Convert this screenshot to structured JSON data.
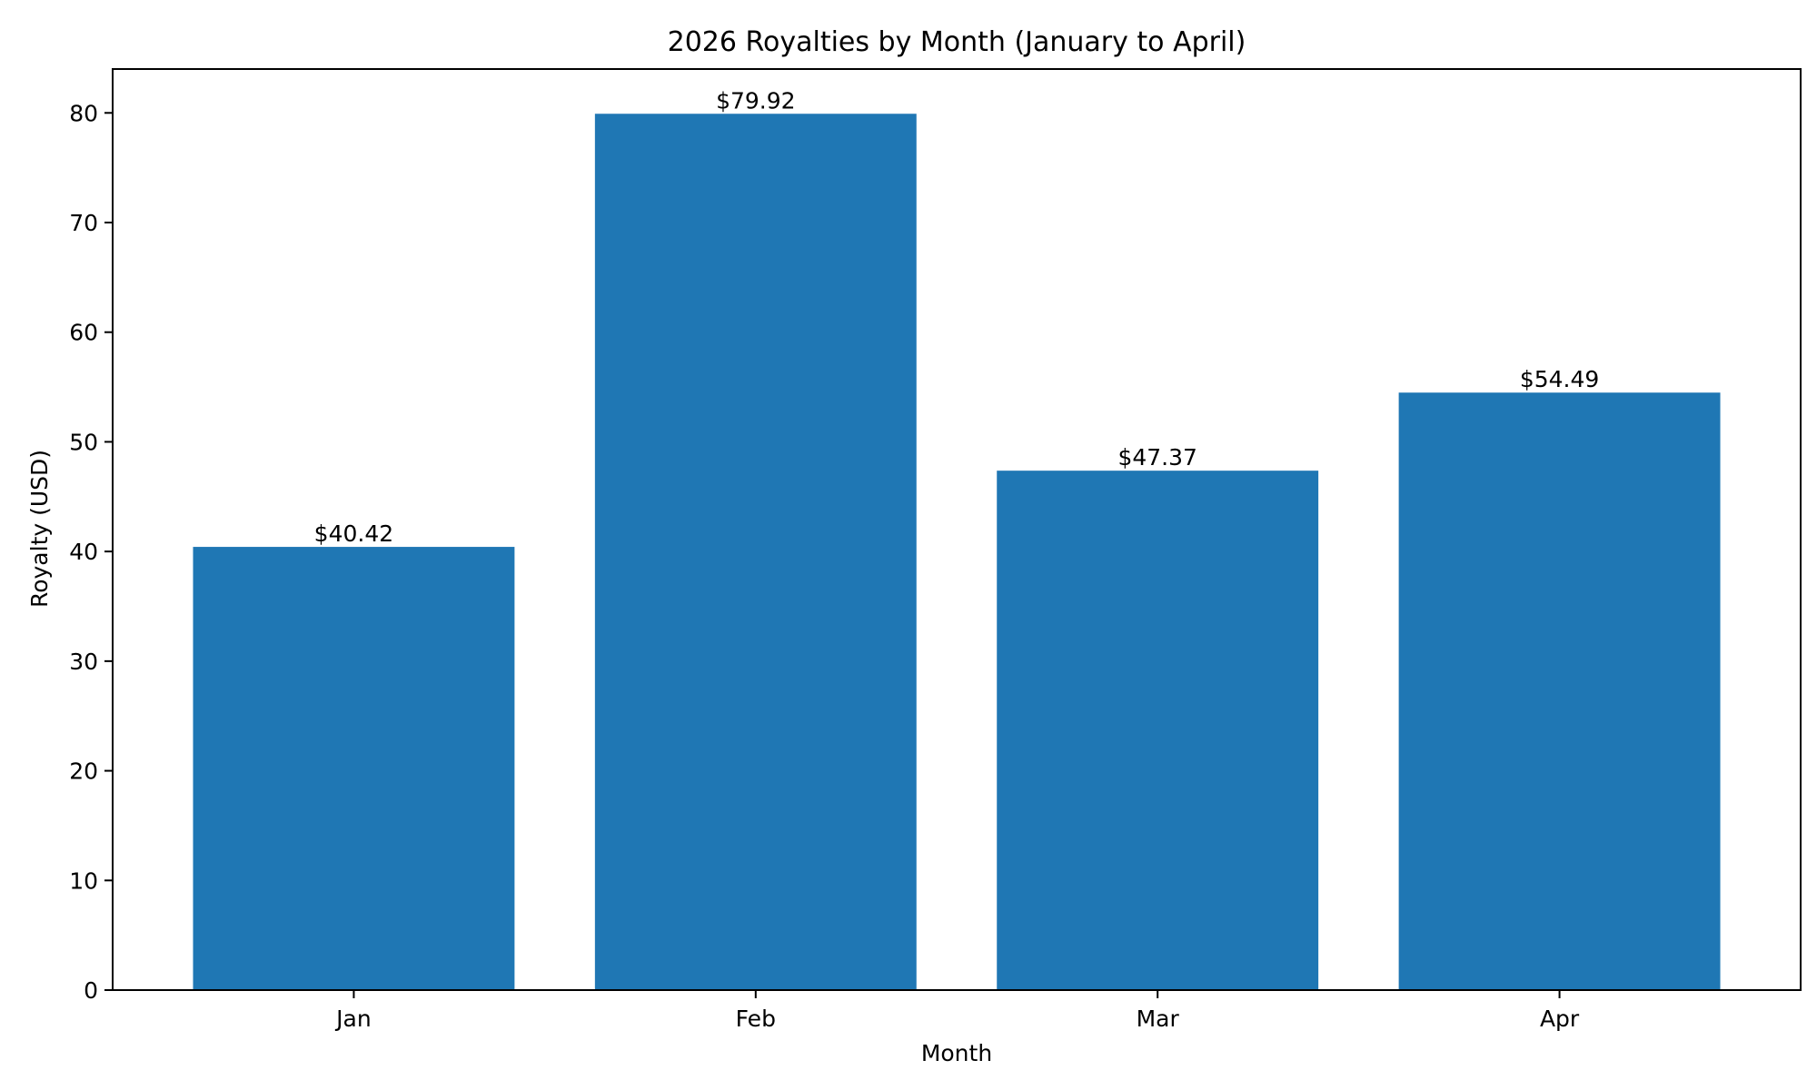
{
  "chart_data": {
    "type": "bar",
    "title": "2026 Royalties by Month (January to April)",
    "xlabel": "Month",
    "ylabel": "Royalty (USD)",
    "categories": [
      "Jan",
      "Feb",
      "Mar",
      "Apr"
    ],
    "values": [
      40.42,
      79.92,
      47.37,
      54.49
    ],
    "data_labels": [
      "$40.42",
      "$79.92",
      "$47.37",
      "$54.49"
    ],
    "yticks": [
      0,
      10,
      20,
      30,
      40,
      50,
      60,
      70,
      80
    ],
    "ylim": [
      0,
      84
    ],
    "grid": false,
    "legend": "none",
    "bar_color": "#1f77b4"
  }
}
